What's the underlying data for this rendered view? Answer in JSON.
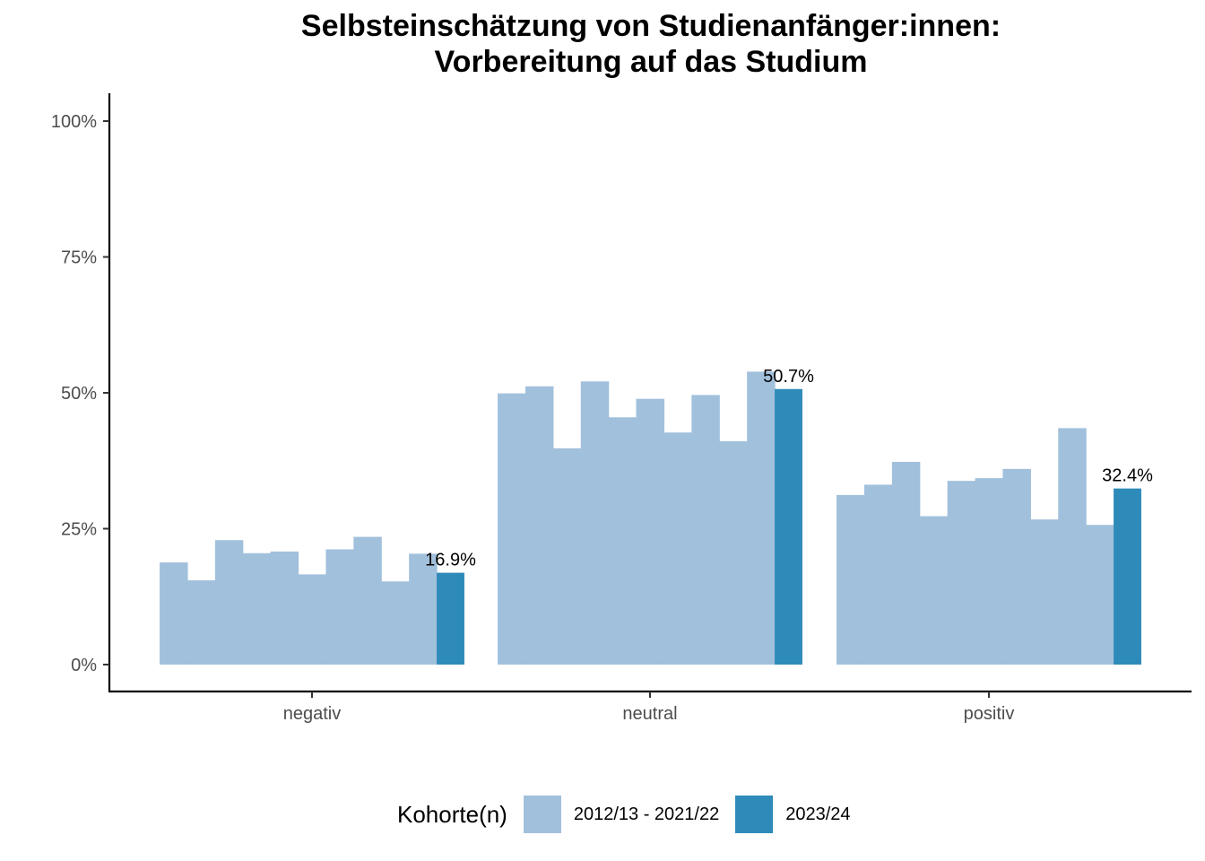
{
  "title_line1": "Selbsteinschätzung von Studienanfänger:innen:",
  "title_line2": "Vorbereitung auf das Studium",
  "legend": {
    "title": "Kohorte(n)",
    "items": [
      {
        "label": "2012/13 - 2021/22",
        "color": "#a1c0dc"
      },
      {
        "label": "2023/24",
        "color": "#2e8bb9"
      }
    ]
  },
  "chart_data": {
    "type": "bar",
    "categories": [
      "negativ",
      "neutral",
      "positiv"
    ],
    "ylim": [
      0,
      1
    ],
    "yticks": [
      0,
      0.25,
      0.5,
      0.75,
      1
    ],
    "ytick_labels": [
      "0%",
      "25%",
      "50%",
      "75%",
      "100%"
    ],
    "series": [
      {
        "name": "2012/13 - 2021/22",
        "color": "#a1c0dc",
        "values": [
          [
            0.188,
            0.155,
            0.229,
            0.205,
            0.208,
            0.166,
            0.212,
            0.235,
            0.153,
            0.204
          ],
          [
            0.499,
            0.512,
            0.398,
            0.521,
            0.455,
            0.489,
            0.427,
            0.496,
            0.411,
            0.539
          ],
          [
            0.312,
            0.331,
            0.373,
            0.273,
            0.338,
            0.343,
            0.36,
            0.267,
            0.435,
            0.257
          ]
        ]
      },
      {
        "name": "2023/24",
        "color": "#2e8bb9",
        "values": [
          0.169,
          0.507,
          0.324
        ],
        "labels": [
          "16.9%",
          "50.7%",
          "32.4%"
        ]
      }
    ]
  }
}
